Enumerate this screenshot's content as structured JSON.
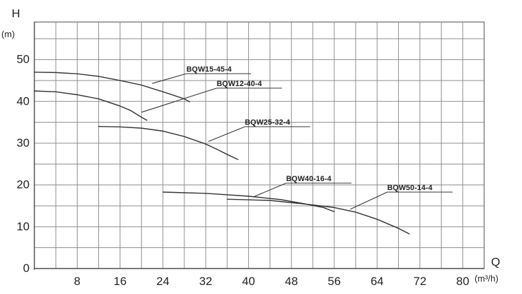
{
  "chart_data": {
    "type": "line",
    "ylabel": "H",
    "yunit": "(m)",
    "xlabel": "Q",
    "xunit": "(m³/h)",
    "xlim": [
      0,
      84
    ],
    "ylim": [
      0,
      59
    ],
    "grid": true,
    "grid_minor_x_step": 4,
    "grid_minor_y_step": 5,
    "x_ticks": [
      8,
      16,
      24,
      32,
      40,
      48,
      56,
      64,
      72,
      80
    ],
    "x_tick_labels": [
      "8",
      "16",
      "24",
      "32",
      "40",
      "48",
      "56",
      "64",
      "72",
      "80"
    ],
    "y_ticks": [
      0,
      10,
      20,
      30,
      40,
      50
    ],
    "y_tick_labels": [
      "0",
      "10",
      "20",
      "30",
      "40",
      "50"
    ],
    "series": [
      {
        "name": "BQW15-45-4",
        "color": "#333333",
        "x": [
          0,
          4,
          8,
          12,
          16,
          20,
          24,
          28,
          29
        ],
        "y": [
          47,
          46.9,
          46.6,
          46.0,
          45.0,
          43.9,
          42.3,
          40.6,
          39.9
        ],
        "label_anchor": [
          22,
          44.3
        ]
      },
      {
        "name": "BQW12-40-4",
        "color": "#333333",
        "x": [
          0,
          4,
          8,
          12,
          16,
          18,
          20,
          21
        ],
        "y": [
          42.5,
          42.3,
          41.6,
          40.6,
          38.9,
          37.8,
          36.2,
          35.5
        ],
        "label_anchor": [
          20,
          37.4
        ]
      },
      {
        "name": "BQW25-32-4",
        "color": "#333333",
        "x": [
          12,
          16,
          20,
          24,
          28,
          32,
          34,
          36,
          38
        ],
        "y": [
          34,
          33.9,
          33.6,
          32.9,
          31.6,
          29.8,
          28.6,
          27.3,
          26.1
        ],
        "label_anchor": [
          32.5,
          30.4
        ]
      },
      {
        "name": "BQW40-16-4",
        "color": "#333333",
        "x": [
          24,
          32,
          40,
          46,
          50,
          54,
          56
        ],
        "y": [
          18.3,
          18.0,
          17.3,
          16.5,
          15.6,
          14.6,
          13.6
        ],
        "label_anchor": [
          41,
          17.2
        ]
      },
      {
        "name": "BQW50-14-4",
        "color": "#333333",
        "x": [
          36,
          44,
          50,
          56,
          60,
          64,
          68,
          70
        ],
        "y": [
          16.6,
          16.3,
          15.5,
          14.6,
          13.5,
          11.8,
          9.6,
          8.3
        ],
        "label_anchor": [
          59,
          14.2
        ]
      }
    ]
  }
}
